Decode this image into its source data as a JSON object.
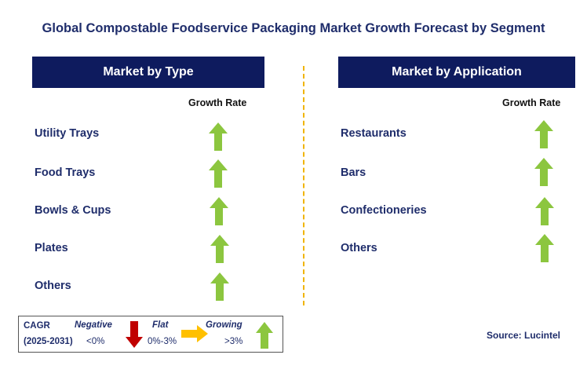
{
  "title": "Global Compostable Foodservice Packaging Market Growth Forecast by Segment",
  "left_panel": {
    "header": "Market by Type",
    "growth_label": "Growth Rate",
    "items": [
      {
        "label": "Utility Trays",
        "trend": "growing"
      },
      {
        "label": "Food Trays",
        "trend": "growing"
      },
      {
        "label": "Bowls & Cups",
        "trend": "growing"
      },
      {
        "label": "Plates",
        "trend": "growing"
      },
      {
        "label": "Others",
        "trend": "growing"
      }
    ]
  },
  "right_panel": {
    "header": "Market by Application",
    "growth_label": "Growth Rate",
    "items": [
      {
        "label": "Restaurants",
        "trend": "growing"
      },
      {
        "label": "Bars",
        "trend": "growing"
      },
      {
        "label": "Confectioneries",
        "trend": "growing"
      },
      {
        "label": "Others",
        "trend": "growing"
      }
    ]
  },
  "legend": {
    "cagr": "CAGR",
    "years": "(2025-2031)",
    "negative_label": "Negative",
    "negative_range": "<0%",
    "flat_label": "Flat",
    "flat_range": "0%-3%",
    "growing_label": "Growing",
    "growing_range": ">3%"
  },
  "source": "Source: Lucintel",
  "colors": {
    "header_bg": "#0e1b5e",
    "text_navy": "#1f2d6b",
    "divider": "#f0b400",
    "up_arrow": "#8cc63f",
    "down_arrow": "#c00000",
    "flat_arrow": "#ffc000"
  }
}
